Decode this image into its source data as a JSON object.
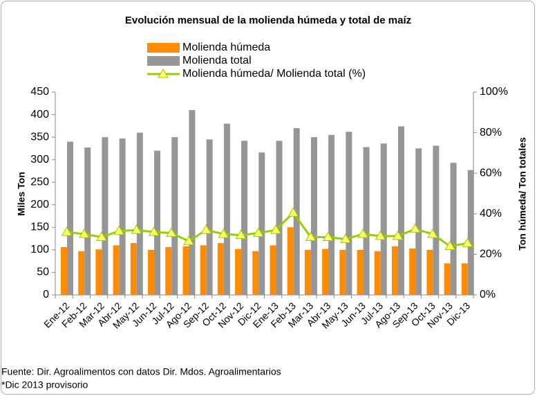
{
  "chart_data": {
    "type": "bar_line",
    "title": "Evolución mensual de la molienda húmeda y total de maíz",
    "y_label": "Miles Ton",
    "y2_label": "Ton húmeda/ Ton totales",
    "categories": [
      "Ene-12",
      "Feb-12",
      "Mar-12",
      "Abr-12",
      "May-12",
      "Jun-12",
      "Jul-12",
      "Ago-12",
      "Sep-12",
      "Oct-12",
      "Nov-12",
      "Dic-12",
      "Ene-13",
      "Feb-13",
      "Mar-13",
      "Abr-13",
      "May-13",
      "Jun-13",
      "Jul-13",
      "Ago-13",
      "Sep-13",
      "Oct-13",
      "Nov-13",
      "Dic-13"
    ],
    "series": [
      {
        "name": "Molienda húmeda",
        "type": "bar",
        "color": "#ff8c00",
        "values": [
          106,
          97,
          101,
          110,
          115,
          100,
          106,
          108,
          110,
          115,
          102,
          97,
          110,
          150,
          100,
          102,
          100,
          100,
          97,
          108,
          103,
          100,
          70,
          70
        ]
      },
      {
        "name": "Molienda total",
        "type": "bar",
        "color": "#969696",
        "values": [
          340,
          327,
          350,
          347,
          360,
          320,
          350,
          410,
          345,
          380,
          342,
          316,
          342,
          370,
          350,
          355,
          362,
          328,
          336,
          374,
          325,
          331,
          293,
          277
        ]
      },
      {
        "name": "Molienda húmeda/ Molienda total (%)",
        "type": "line",
        "axis": "y2",
        "color": "#99cc00",
        "marker_color": "#ffff66",
        "values": [
          31,
          30,
          28.5,
          31.5,
          32,
          31,
          30.5,
          26.5,
          32,
          30,
          29.5,
          30.5,
          32,
          40.5,
          28.5,
          28.5,
          27.5,
          30,
          29,
          29,
          32.5,
          30,
          24,
          25.5
        ]
      }
    ],
    "ylim": [
      0,
      450
    ],
    "yticks": [
      0,
      50,
      100,
      150,
      200,
      250,
      300,
      350,
      400,
      450
    ],
    "y2lim": [
      0,
      100
    ],
    "y2ticks": [
      {
        "value": 0,
        "label": "0%"
      },
      {
        "value": 20,
        "label": "20%"
      },
      {
        "value": 40,
        "label": "40%"
      },
      {
        "value": 60,
        "label": "60%"
      },
      {
        "value": 80,
        "label": "80%"
      },
      {
        "value": 100,
        "label": "100%"
      }
    ],
    "legend": "top",
    "notes": [
      "Fuente: Dir. Agroalimentos con datos Dir. Mdos. Agroalimentarios",
      "*Dic 2013 provisorio"
    ]
  }
}
